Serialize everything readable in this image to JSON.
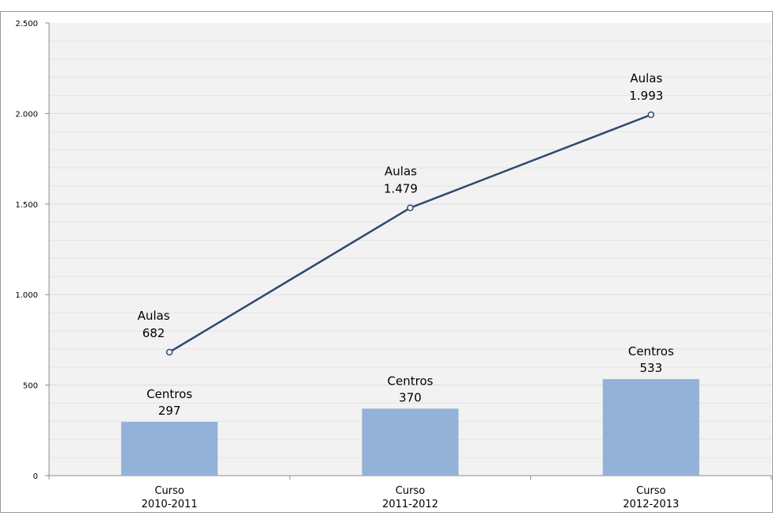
{
  "chart_data": {
    "type": "bar+line",
    "title": "",
    "xlabel": "",
    "ylabel": "",
    "ylim": [
      0,
      2500
    ],
    "yticks": [
      0,
      500,
      1000,
      1500,
      2000,
      2500
    ],
    "ytick_labels": [
      "0",
      "500",
      "1.000",
      "1.500",
      "2.000",
      "2.500"
    ],
    "categories": [
      [
        "Curso",
        "2010-2011"
      ],
      [
        "Curso",
        "2011-2012"
      ],
      [
        "Curso",
        "2012-2013"
      ]
    ],
    "grid": true,
    "series": [
      {
        "type": "bar",
        "values": [
          297,
          370,
          533
        ],
        "labels": [
          "Centros",
          "Centros",
          "Centros"
        ],
        "value_labels": [
          "297",
          "370",
          "533"
        ],
        "color": "#94b2d8"
      },
      {
        "type": "line",
        "values": [
          682,
          1479,
          1993
        ],
        "labels": [
          "Aulas",
          "Aulas",
          "Aulas"
        ],
        "value_labels": [
          "682",
          "1.479",
          "1.993"
        ],
        "color": "#2e4a6e"
      }
    ],
    "plot_background": "#f2f2f2",
    "gridline_color": "#e4e4e4"
  }
}
